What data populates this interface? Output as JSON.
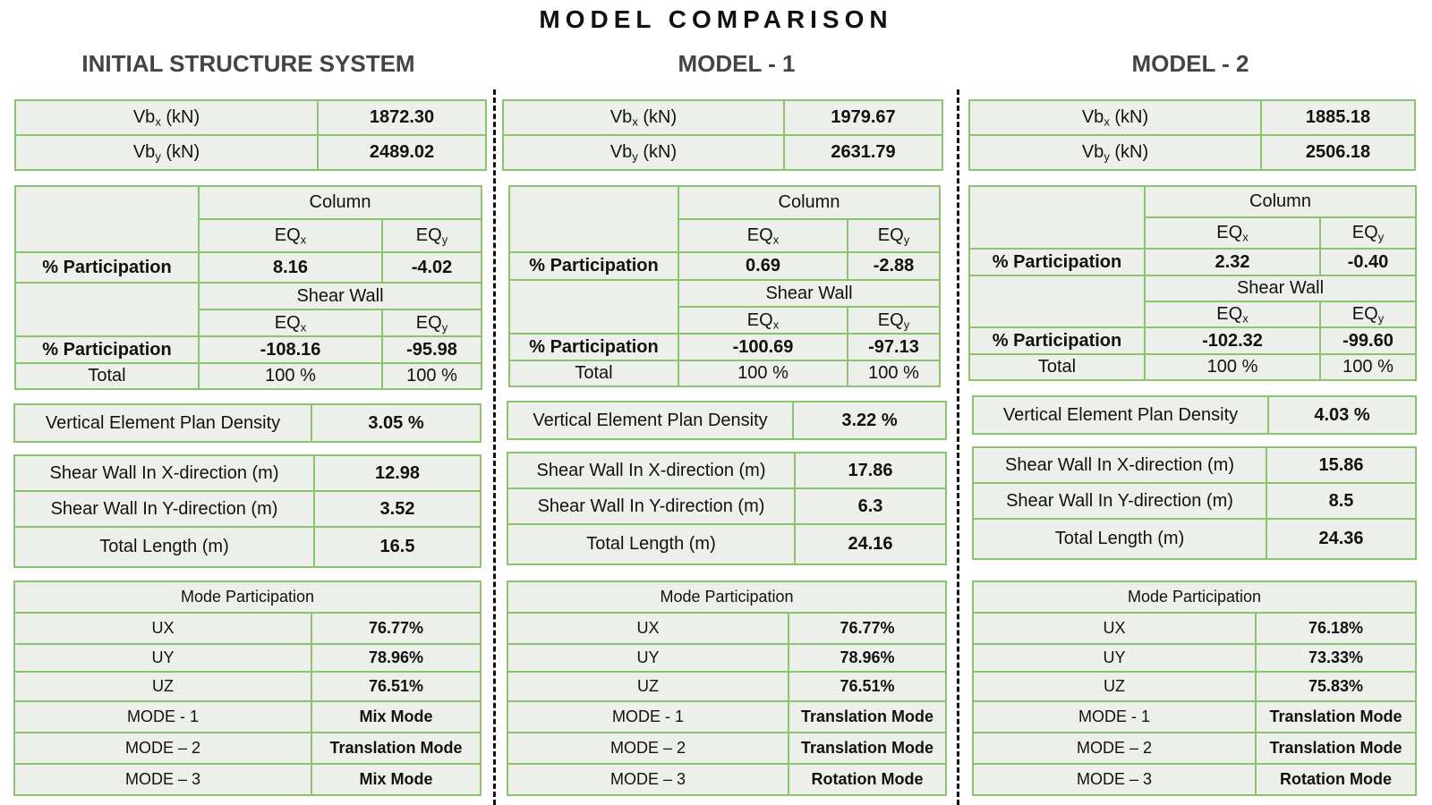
{
  "title": "MODEL COMPARISON",
  "columns": [
    {
      "heading": "INITIAL STRUCTURE SYSTEM",
      "vb": [
        {
          "label": "Vb",
          "sub": "x",
          "unit": " (kN)",
          "value": "1872.30"
        },
        {
          "label": "Vb",
          "sub": "y",
          "unit": " (kN)",
          "value": "2489.02"
        }
      ],
      "participation": {
        "column_label": "Column",
        "shear_wall_label": "Shear Wall",
        "eq_label": "EQ",
        "eq_x_sub": "x",
        "eq_y_sub": "y",
        "row_label": "% Participation",
        "column_x": "8.16",
        "column_y": "-4.02",
        "wall_x": "-108.16",
        "wall_y": "-95.98",
        "total_label": "Total",
        "total_x": "100 %",
        "total_y": "100 %"
      },
      "density": {
        "label": "Vertical Element Plan Density",
        "value": "3.05 %"
      },
      "walls": [
        {
          "label": "Shear Wall In X-direction (m)",
          "value": "12.98"
        },
        {
          "label": "Shear Wall In Y-direction (m)",
          "value": "3.52"
        },
        {
          "label": "Total Length (m)",
          "value": "16.5"
        }
      ],
      "modes": {
        "header": "Mode Participation",
        "rows": [
          {
            "label": "UX",
            "value": "76.77%"
          },
          {
            "label": "UY",
            "value": "78.96%"
          },
          {
            "label": "UZ",
            "value": "76.51%"
          },
          {
            "label": "MODE - 1",
            "value": "Mix Mode"
          },
          {
            "label": "MODE – 2",
            "value": "Translation Mode"
          },
          {
            "label": "MODE – 3",
            "value": "Mix Mode"
          }
        ]
      }
    },
    {
      "heading": "MODEL - 1",
      "vb": [
        {
          "label": "Vb",
          "sub": "x",
          "unit": " (kN)",
          "value": "1979.67"
        },
        {
          "label": "Vb",
          "sub": "y",
          "unit": " (kN)",
          "value": "2631.79"
        }
      ],
      "participation": {
        "column_label": "Column",
        "shear_wall_label": "Shear Wall",
        "eq_label": "EQ",
        "eq_x_sub": "x",
        "eq_y_sub": "y",
        "row_label": "% Participation",
        "column_x": "0.69",
        "column_y": "-2.88",
        "wall_x": "-100.69",
        "wall_y": "-97.13",
        "total_label": "Total",
        "total_x": "100 %",
        "total_y": "100 %"
      },
      "density": {
        "label": "Vertical Element Plan Density",
        "value": "3.22 %"
      },
      "walls": [
        {
          "label": "Shear Wall In X-direction (m)",
          "value": "17.86"
        },
        {
          "label": "Shear Wall In Y-direction (m)",
          "value": "6.3"
        },
        {
          "label": "Total Length (m)",
          "value": "24.16"
        }
      ],
      "modes": {
        "header": "Mode Participation",
        "rows": [
          {
            "label": "UX",
            "value": "76.77%"
          },
          {
            "label": "UY",
            "value": "78.96%"
          },
          {
            "label": "UZ",
            "value": "76.51%"
          },
          {
            "label": "MODE - 1",
            "value": "Translation Mode"
          },
          {
            "label": "MODE – 2",
            "value": "Translation Mode"
          },
          {
            "label": "MODE – 3",
            "value": "Rotation Mode"
          }
        ]
      }
    },
    {
      "heading": "MODEL - 2",
      "vb": [
        {
          "label": "Vb",
          "sub": "x",
          "unit": " (kN)",
          "value": "1885.18"
        },
        {
          "label": "Vb",
          "sub": "y",
          "unit": " (kN)",
          "value": "2506.18"
        }
      ],
      "participation": {
        "column_label": "Column",
        "shear_wall_label": "Shear Wall",
        "eq_label": "EQ",
        "eq_x_sub": "x",
        "eq_y_sub": "y",
        "row_label": "% Participation",
        "column_x": "2.32",
        "column_y": "-0.40",
        "wall_x": "-102.32",
        "wall_y": "-99.60",
        "total_label": "Total",
        "total_x": "100 %",
        "total_y": "100 %"
      },
      "density": {
        "label": "Vertical Element Plan Density",
        "value": "4.03 %"
      },
      "walls": [
        {
          "label": "Shear Wall In X-direction (m)",
          "value": "15.86"
        },
        {
          "label": "Shear Wall In Y-direction (m)",
          "value": "8.5"
        },
        {
          "label": "Total Length (m)",
          "value": "24.36"
        }
      ],
      "modes": {
        "header": "Mode Participation",
        "rows": [
          {
            "label": "UX",
            "value": "76.18%"
          },
          {
            "label": "UY",
            "value": "73.33%"
          },
          {
            "label": "UZ",
            "value": "75.83%"
          },
          {
            "label": "MODE - 1",
            "value": "Translation Mode"
          },
          {
            "label": "MODE – 2",
            "value": "Translation Mode"
          },
          {
            "label": "MODE – 3",
            "value": "Rotation Mode"
          }
        ]
      }
    }
  ]
}
